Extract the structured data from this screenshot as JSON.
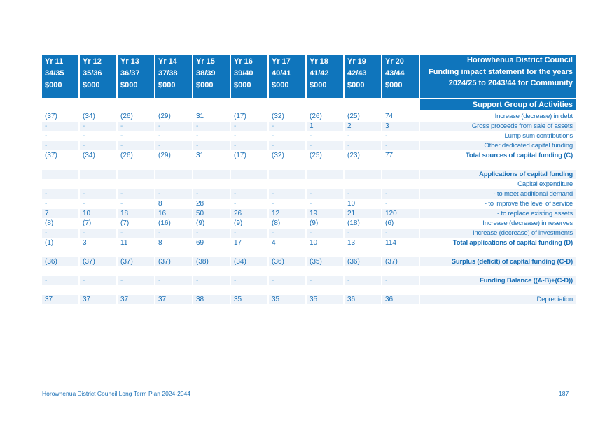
{
  "header": {
    "years": [
      {
        "yr": "Yr 11",
        "period": "34/35",
        "unit": "$000"
      },
      {
        "yr": "Yr 12",
        "period": "35/36",
        "unit": "$000"
      },
      {
        "yr": "Yr 13",
        "period": "36/37",
        "unit": "$000"
      },
      {
        "yr": "Yr 14",
        "period": "37/38",
        "unit": "$000"
      },
      {
        "yr": "Yr 15",
        "period": "38/39",
        "unit": "$000"
      },
      {
        "yr": "Yr 16",
        "period": "39/40",
        "unit": "$000"
      },
      {
        "yr": "Yr 17",
        "period": "40/41",
        "unit": "$000"
      },
      {
        "yr": "Yr 18",
        "period": "41/42",
        "unit": "$000"
      },
      {
        "yr": "Yr 19",
        "period": "42/43",
        "unit": "$000"
      },
      {
        "yr": "Yr 20",
        "period": "43/44",
        "unit": "$000"
      }
    ],
    "title_lines": [
      "Horowhenua District Council",
      "Funding impact statement for the years",
      "2024/25 to 2043/44 for Community",
      "Support Group of Activities"
    ]
  },
  "rows": [
    {
      "values": [
        "(37)",
        "(34)",
        "(26)",
        "(29)",
        "31",
        "(17)",
        "(32)",
        "(26)",
        "(25)",
        "74"
      ],
      "label": "Increase (decrease) in debt"
    },
    {
      "values": [
        "-",
        "-",
        "-",
        "-",
        "-",
        "-",
        "-",
        "1",
        "2",
        "3"
      ],
      "label": "Gross proceeds from sale of assets"
    },
    {
      "values": [
        "-",
        "-",
        "-",
        "-",
        "-",
        "-",
        "-",
        "-",
        "-",
        "-"
      ],
      "label": "Lump sum contributions"
    },
    {
      "values": [
        "-",
        "-",
        "-",
        "-",
        "-",
        "-",
        "-",
        "-",
        "-",
        "-"
      ],
      "label": "Other dedicated capital funding"
    },
    {
      "values": [
        "(37)",
        "(34)",
        "(26)",
        "(29)",
        "31",
        "(17)",
        "(32)",
        "(25)",
        "(23)",
        "77"
      ],
      "label": "Total sources of capital funding (C)",
      "bold": true
    },
    {
      "gap": true
    },
    {
      "values": [
        "",
        "",
        "",
        "",
        "",
        "",
        "",
        "",
        "",
        ""
      ],
      "label": "Applications of capital funding",
      "bold": true
    },
    {
      "values": [
        "",
        "",
        "",
        "",
        "",
        "",
        "",
        "",
        "",
        ""
      ],
      "label": "Capital expenditure"
    },
    {
      "values": [
        "-",
        "-",
        "-",
        "-",
        "-",
        "-",
        "-",
        "-",
        "-",
        "-"
      ],
      "label": "- to meet additional demand"
    },
    {
      "values": [
        "-",
        "-",
        "-",
        "8",
        "28",
        "-",
        "-",
        "-",
        "10",
        "-"
      ],
      "label": "- to improve the level of service"
    },
    {
      "values": [
        "7",
        "10",
        "18",
        "16",
        "50",
        "26",
        "12",
        "19",
        "21",
        "120"
      ],
      "label": "- to replace existing assets"
    },
    {
      "values": [
        "(8)",
        "(7)",
        "(7)",
        "(16)",
        "(9)",
        "(9)",
        "(8)",
        "(9)",
        "(18)",
        "(6)"
      ],
      "label": "Increase (decrease) in reserves"
    },
    {
      "values": [
        "-",
        "-",
        "-",
        "-",
        "-",
        "-",
        "-",
        "-",
        "-",
        "-"
      ],
      "label": "Increase (decrease) of investments"
    },
    {
      "values": [
        "(1)",
        "3",
        "11",
        "8",
        "69",
        "17",
        "4",
        "10",
        "13",
        "114"
      ],
      "label": "Total applications of capital funding (D)",
      "bold": true
    },
    {
      "gap": true
    },
    {
      "values": [
        "(36)",
        "(37)",
        "(37)",
        "(37)",
        "(38)",
        "(34)",
        "(36)",
        "(35)",
        "(36)",
        "(37)"
      ],
      "label": "Surplus (deficit) of capital funding (C-D)",
      "bold": true
    },
    {
      "gap": true
    },
    {
      "values": [
        "-",
        "-",
        "-",
        "-",
        "-",
        "-",
        "-",
        "-",
        "-",
        "-"
      ],
      "label": "Funding Balance ((A-B)+(C-D))",
      "bold": true
    },
    {
      "gap": true
    },
    {
      "values": [
        "37",
        "37",
        "37",
        "37",
        "38",
        "35",
        "35",
        "35",
        "36",
        "36"
      ],
      "label": "Depreciation"
    }
  ],
  "footer": {
    "left": "Horowhenua District Council Long Term Plan 2024-2044",
    "page": "187"
  }
}
